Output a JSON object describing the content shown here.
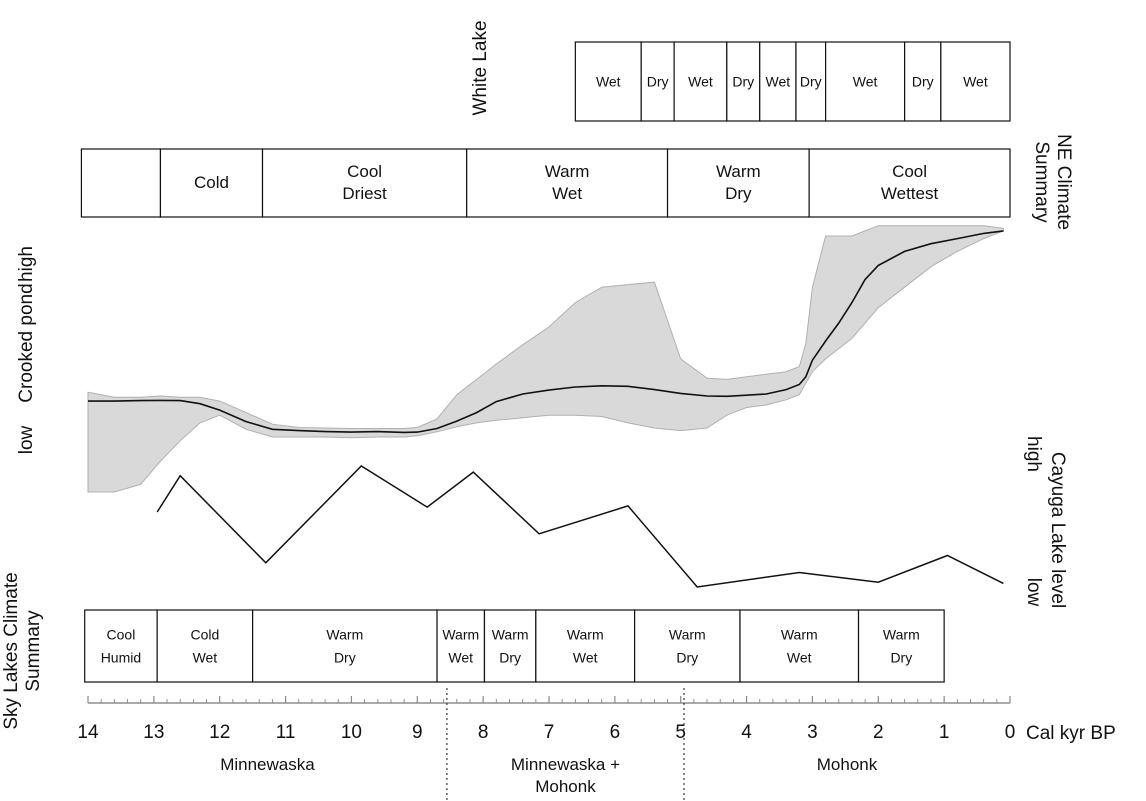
{
  "chart_data": {
    "type": "line",
    "x_axis": {
      "label": "Cal kyr BP",
      "range": [
        14,
        0
      ],
      "ticks": [
        "14",
        "13",
        "12",
        "11",
        "10",
        "9",
        "8",
        "7",
        "6",
        "5",
        "4",
        "3",
        "2",
        "1",
        "0"
      ],
      "minor_step": 0.2
    },
    "white_lake": {
      "label": "White Lake",
      "segments": [
        {
          "from": 6.6,
          "to": 5.6,
          "label": "Wet"
        },
        {
          "from": 5.6,
          "to": 5.1,
          "label": "Dry"
        },
        {
          "from": 5.1,
          "to": 4.3,
          "label": "Wet"
        },
        {
          "from": 4.3,
          "to": 3.8,
          "label": "Dry"
        },
        {
          "from": 3.8,
          "to": 3.25,
          "label": "Wet"
        },
        {
          "from": 3.25,
          "to": 2.8,
          "label": "Dry"
        },
        {
          "from": 2.8,
          "to": 1.6,
          "label": "Wet"
        },
        {
          "from": 1.6,
          "to": 1.05,
          "label": "Dry"
        },
        {
          "from": 1.05,
          "to": 0.0,
          "label": "Wet"
        }
      ]
    },
    "ne_climate_summary": {
      "label": "NE Climate Summary",
      "label_lines": [
        "NE Climate",
        "Summary"
      ],
      "segments": [
        {
          "from": 14.1,
          "to": 12.9,
          "lines": [
            ""
          ]
        },
        {
          "from": 12.9,
          "to": 11.35,
          "lines": [
            "Cold"
          ]
        },
        {
          "from": 11.35,
          "to": 8.25,
          "lines": [
            "Cool",
            "Driest"
          ]
        },
        {
          "from": 8.25,
          "to": 5.2,
          "lines": [
            "Warm",
            "Wet"
          ]
        },
        {
          "from": 5.2,
          "to": 3.05,
          "lines": [
            "Warm",
            "Dry"
          ]
        },
        {
          "from": 3.05,
          "to": 0.0,
          "lines": [
            "Cool",
            "Wettest"
          ]
        }
      ]
    },
    "crooked_pond": {
      "label": "Crooked pond",
      "high_label": "high",
      "low_label": "low",
      "y_range": [
        0,
        1
      ],
      "x": [
        14.0,
        13.6,
        13.2,
        12.9,
        12.6,
        12.3,
        12.0,
        11.6,
        11.2,
        10.8,
        10.4,
        10.0,
        9.6,
        9.2,
        9.0,
        8.7,
        8.4,
        8.1,
        7.8,
        7.4,
        7.0,
        6.6,
        6.2,
        5.8,
        5.4,
        5.0,
        4.6,
        4.3,
        4.0,
        3.7,
        3.4,
        3.2,
        3.1,
        3.0,
        2.8,
        2.6,
        2.4,
        2.2,
        2.0,
        1.6,
        1.2,
        0.8,
        0.4,
        0.1
      ],
      "y": [
        0.355,
        0.355,
        0.357,
        0.358,
        0.357,
        0.345,
        0.32,
        0.275,
        0.245,
        0.24,
        0.236,
        0.234,
        0.236,
        0.233,
        0.234,
        0.248,
        0.277,
        0.31,
        0.353,
        0.383,
        0.398,
        0.41,
        0.415,
        0.413,
        0.4,
        0.385,
        0.375,
        0.374,
        0.378,
        0.383,
        0.4,
        0.42,
        0.45,
        0.515,
        0.59,
        0.66,
        0.74,
        0.83,
        0.885,
        0.94,
        0.97,
        0.99,
        1.01,
        1.02
      ],
      "band_upper": [
        0.39,
        0.37,
        0.37,
        0.375,
        0.37,
        0.37,
        0.355,
        0.31,
        0.265,
        0.252,
        0.25,
        0.248,
        0.248,
        0.248,
        0.252,
        0.285,
        0.38,
        0.44,
        0.5,
        0.575,
        0.645,
        0.74,
        0.8,
        0.81,
        0.82,
        0.52,
        0.445,
        0.44,
        0.45,
        0.46,
        0.47,
        0.49,
        0.58,
        0.8,
        1.0,
        1.0,
        1.0,
        1.02,
        1.04,
        1.04,
        1.04,
        1.04,
        1.04,
        1.03
      ],
      "band_lower": [
        0.0,
        0.0,
        0.03,
        0.12,
        0.2,
        0.27,
        0.3,
        0.245,
        0.215,
        0.215,
        0.215,
        0.212,
        0.215,
        0.215,
        0.22,
        0.235,
        0.255,
        0.27,
        0.28,
        0.29,
        0.3,
        0.3,
        0.295,
        0.27,
        0.25,
        0.24,
        0.25,
        0.3,
        0.33,
        0.34,
        0.36,
        0.38,
        0.425,
        0.47,
        0.52,
        0.56,
        0.6,
        0.66,
        0.72,
        0.8,
        0.88,
        0.94,
        0.99,
        1.02
      ]
    },
    "cayuga_lake": {
      "label": "Cayuga Lake level",
      "high_label": "high",
      "low_label": "low",
      "y_range": [
        0,
        1
      ],
      "x": [
        12.95,
        12.6,
        11.3,
        9.85,
        8.85,
        8.15,
        7.15,
        5.8,
        4.75,
        3.2,
        2.0,
        0.95,
        0.1
      ],
      "y": [
        0.62,
        0.92,
        0.2,
        1.0,
        0.66,
        0.95,
        0.44,
        0.67,
        0.0,
        0.12,
        0.04,
        0.26,
        0.03
      ]
    },
    "sky_lakes_climate_summary": {
      "label": "Sky Lakes Climate Summary",
      "label_lines": [
        "Sky Lakes Climate",
        "Summary"
      ],
      "segments": [
        {
          "from": 14.05,
          "to": 12.95,
          "lines": [
            "Cool",
            "Humid"
          ]
        },
        {
          "from": 12.95,
          "to": 11.5,
          "lines": [
            "Cold",
            "Wet"
          ]
        },
        {
          "from": 11.5,
          "to": 8.7,
          "lines": [
            "Warm",
            "Dry"
          ]
        },
        {
          "from": 8.7,
          "to": 7.98,
          "lines": [
            "Warm",
            "Wet"
          ]
        },
        {
          "from": 7.98,
          "to": 7.2,
          "lines": [
            "Warm",
            "Dry"
          ]
        },
        {
          "from": 7.2,
          "to": 5.7,
          "lines": [
            "Warm",
            "Wet"
          ]
        },
        {
          "from": 5.7,
          "to": 4.1,
          "lines": [
            "Warm",
            "Dry"
          ]
        },
        {
          "from": 4.1,
          "to": 2.3,
          "lines": [
            "Warm",
            "Wet"
          ]
        },
        {
          "from": 2.3,
          "to": 1.0,
          "lines": [
            "Warm",
            "Dry"
          ]
        }
      ]
    },
    "zones": {
      "dividers": [
        8.55,
        4.95
      ],
      "labels": [
        {
          "from": 14.0,
          "to": 8.55,
          "lines": [
            "Minnewaska"
          ]
        },
        {
          "from": 8.55,
          "to": 4.95,
          "lines": [
            "Minnewaska +",
            "Mohonk"
          ]
        },
        {
          "from": 4.95,
          "to": 0.0,
          "lines": [
            "Mohonk"
          ]
        }
      ]
    }
  }
}
